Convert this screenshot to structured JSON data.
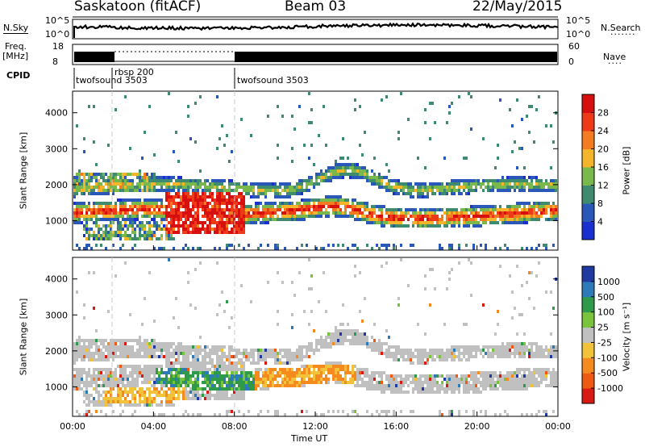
{
  "header": {
    "title": "Saskatoon (fitACF)",
    "beam": "Beam 03",
    "date": "22/May/2015"
  },
  "top_panels": {
    "nsky": {
      "left_label": "N.Sky",
      "right_label": "N.Search",
      "ytick_top": "10^5",
      "ytick_bottom": "10^0"
    },
    "freq": {
      "label_line1": "Freq.",
      "label_line2": "[MHz]",
      "ytick_top": "18",
      "ytick_bottom": "8",
      "right_label": "Nave",
      "right_ytick_top": "60",
      "right_ytick_bottom": "0"
    },
    "cpid": {
      "label": "CPID",
      "segments": [
        "twofsound 3503",
        "rbsp 200",
        "twofsound 3503"
      ]
    }
  },
  "colors": {
    "nsky_trace": "#000000",
    "ground_scatter": "#c0c0c0",
    "marker_line": "#c8c8c8"
  },
  "chart_data": [
    {
      "type": "heatmap",
      "panel": "power",
      "xlabel": "",
      "ylabel": "Slant Range [km]",
      "yticks": [
        "1000",
        "2000",
        "3000",
        "4000"
      ],
      "ylim": [
        180,
        4600
      ],
      "xlim_hours": [
        0,
        24
      ],
      "colorbar": {
        "label": "Power [dB]",
        "ticks": [
          "4",
          "8",
          "12",
          "16",
          "20",
          "24",
          "28"
        ],
        "colors": [
          "#1a2fd0",
          "#2a58b8",
          "#3f8b6f",
          "#79b84a",
          "#f4b52a",
          "#f47c20",
          "#ee3a18",
          "#d80f0f"
        ]
      }
    },
    {
      "type": "heatmap",
      "panel": "velocity",
      "xlabel": "Time UT",
      "ylabel": "Slant Range [km]",
      "yticks": [
        "1000",
        "2000",
        "3000",
        "4000"
      ],
      "ylim": [
        180,
        4600
      ],
      "xlim_hours": [
        0,
        24
      ],
      "xticks": [
        "00:00",
        "04:00",
        "08:00",
        "12:00",
        "16:00",
        "20:00",
        "00:00"
      ],
      "colorbar": {
        "label": "Velocity [m s⁻¹]",
        "ticks": [
          "1000",
          "500",
          "100",
          "25",
          "-25",
          "-100",
          "-500",
          "-1000"
        ],
        "colors": [
          "#1f3aa0",
          "#2d7ab8",
          "#2f9a4a",
          "#79c43c",
          "#c0c0c0",
          "#f2c23a",
          "#f58a1e",
          "#ee5a14",
          "#d81a12"
        ]
      }
    }
  ]
}
